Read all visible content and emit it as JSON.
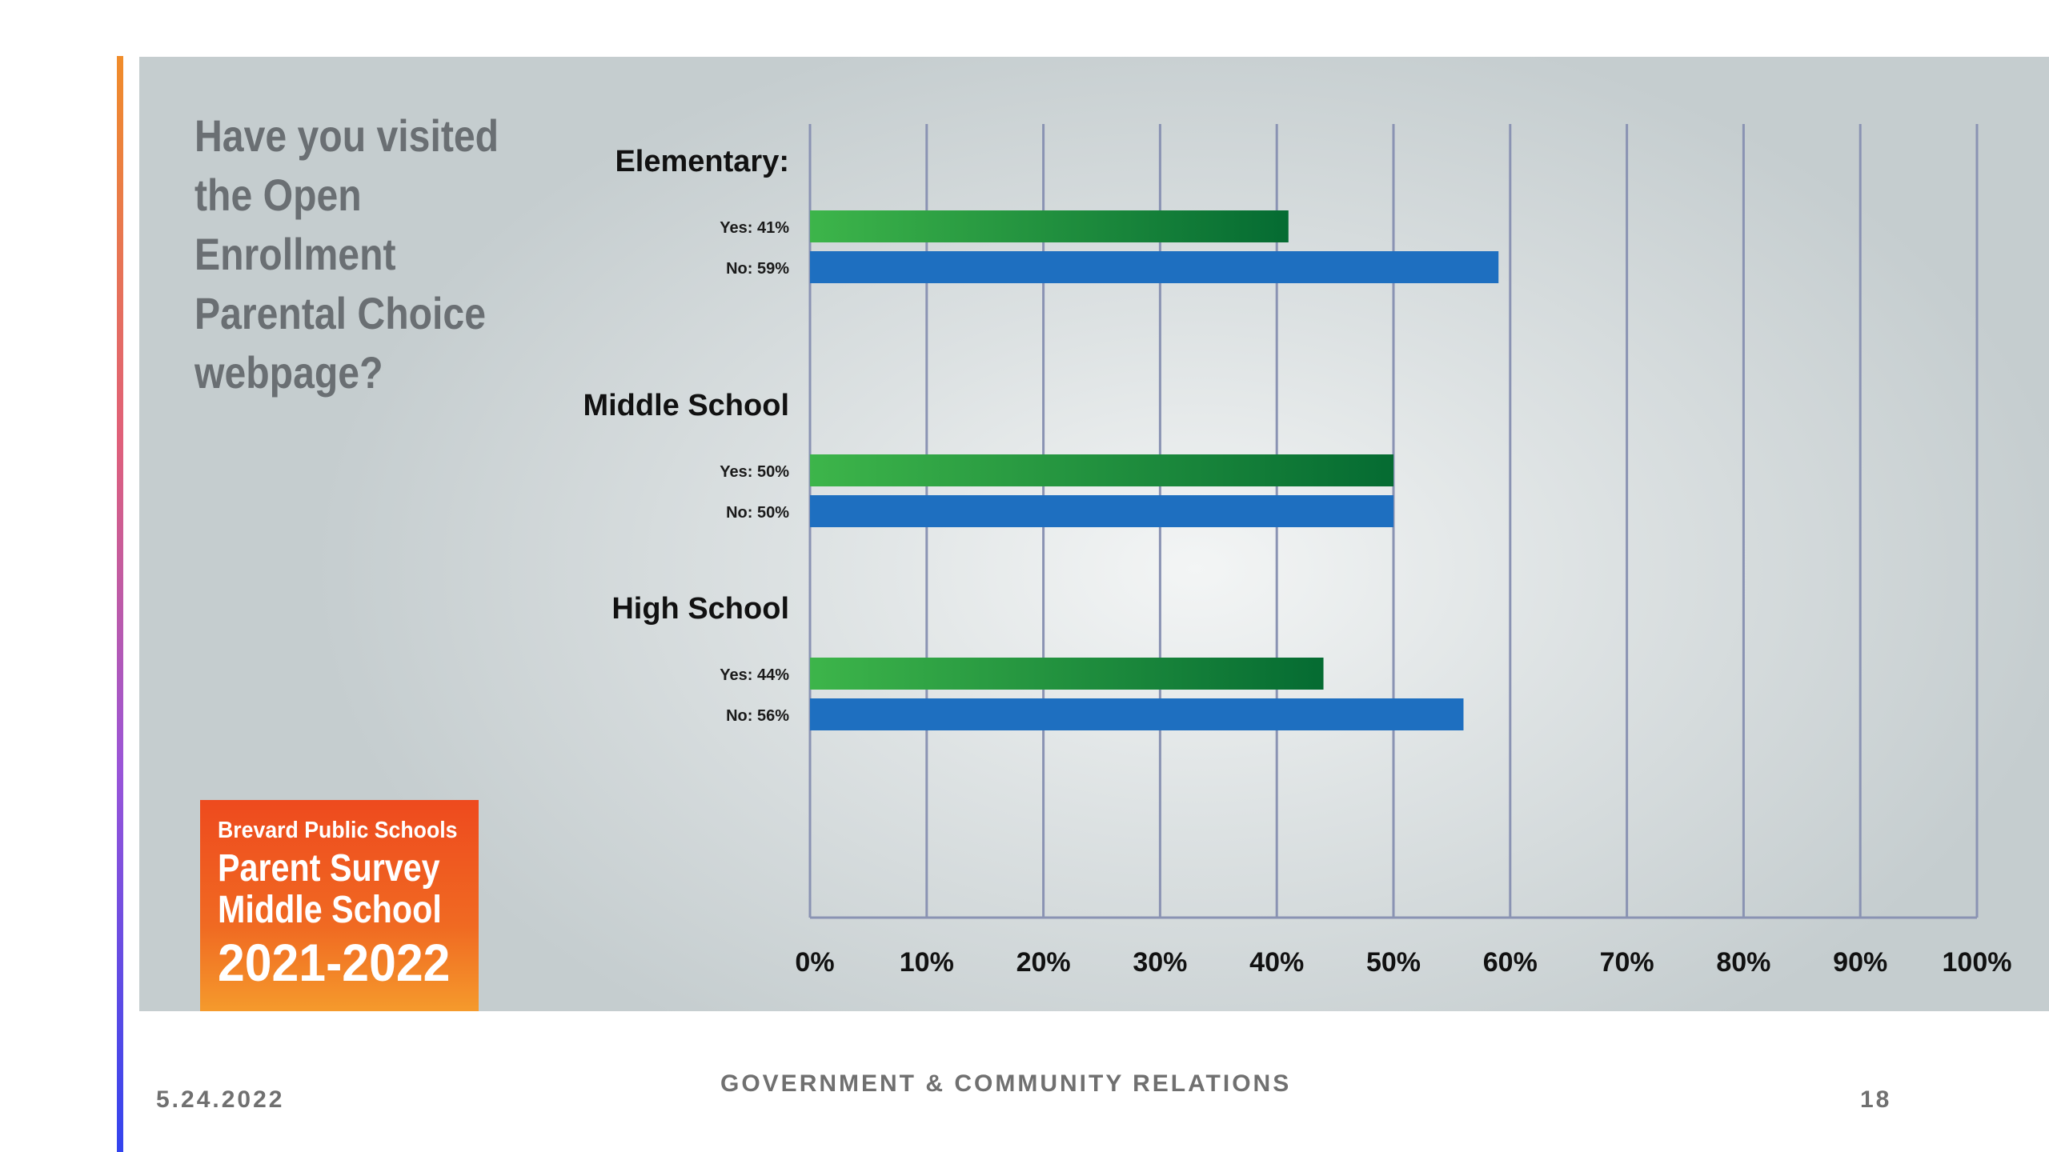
{
  "slide": {
    "question": "Have you visited the Open Enrollment Parental Choice webpage?",
    "badge": {
      "line1": "Brevard Public Schools",
      "line2": "Parent Survey",
      "line3": "Middle School",
      "line4": "2021-2022"
    },
    "footer": {
      "date": "5.24.2022",
      "department": "GOVERNMENT & COMMUNITY RELATIONS",
      "page_number": "18"
    }
  },
  "colors": {
    "yes_bar_start": "#3db54a",
    "yes_bar_end": "#056b32",
    "no_bar": "#1e6fc0",
    "badge": "#ef5a22",
    "gridline": "#8a93b3"
  },
  "chart_data": {
    "type": "bar",
    "orientation": "horizontal",
    "title": "",
    "xlabel": "",
    "ylabel": "",
    "xlim": [
      0,
      100
    ],
    "xticks": [
      "0%",
      "10%",
      "20%",
      "30%",
      "40%",
      "50%",
      "60%",
      "70%",
      "80%",
      "90%",
      "100%"
    ],
    "grid": true,
    "groups": [
      {
        "label": "Elementary:",
        "bars": [
          {
            "label": "Yes: 41%",
            "response": "Yes",
            "value": 41
          },
          {
            "label": "No: 59%",
            "response": "No",
            "value": 59
          }
        ]
      },
      {
        "label": "Middle School",
        "bars": [
          {
            "label": "Yes: 50%",
            "response": "Yes",
            "value": 50
          },
          {
            "label": "No: 50%",
            "response": "No",
            "value": 50
          }
        ]
      },
      {
        "label": "High School",
        "bars": [
          {
            "label": "Yes: 44%",
            "response": "Yes",
            "value": 44
          },
          {
            "label": "No: 56%",
            "response": "No",
            "value": 56
          }
        ]
      }
    ]
  }
}
